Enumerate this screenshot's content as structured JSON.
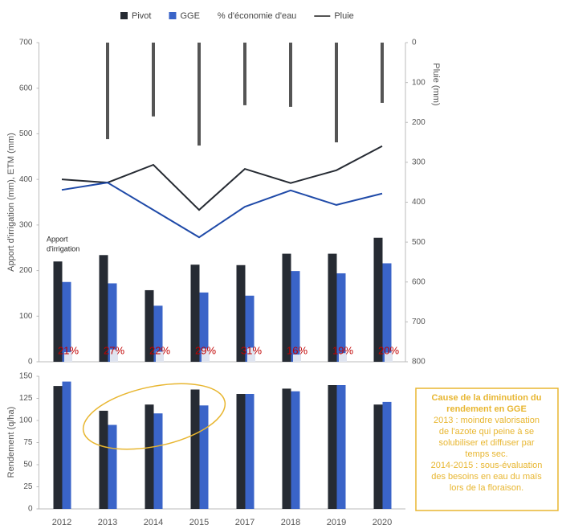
{
  "chart_data": [
    {
      "type": "bar",
      "y_label": "Apport d'irrigation (mm), ETM (mm)",
      "y2_label": "Pluie (mm)",
      "annotation": [
        "Apport",
        "d'irrigation"
      ],
      "ylim": [
        0,
        700
      ],
      "yticks": [
        0,
        100,
        200,
        300,
        400,
        500,
        600,
        700
      ],
      "y2lim": [
        0,
        800
      ],
      "y2ticks": [
        0,
        100,
        200,
        300,
        400,
        500,
        600,
        700,
        800
      ],
      "y2_inverted": true,
      "series": [
        {
          "name": "Pivot",
          "color": "#262b33",
          "values": [
            220,
            234,
            157,
            213,
            212,
            237,
            237,
            272
          ]
        },
        {
          "name": "GGE",
          "color": "#3a64c8",
          "values": [
            175,
            172,
            123,
            152,
            145,
            199,
            194,
            216
          ]
        },
        {
          "name": "% d'économie d'eau",
          "color": "#dfe4f0",
          "values": [
            21,
            27,
            22,
            29,
            31,
            16,
            19,
            20
          ],
          "value_labels": [
            "21%",
            "27%",
            "22%",
            "29%",
            "31%",
            "16%",
            "19%",
            "20%"
          ],
          "label_color": "#c00000"
        },
        {
          "name": "Pluie",
          "color": "#555555",
          "axis": "y2",
          "values": [
            null,
            242,
            185,
            258,
            157,
            161,
            250,
            151
          ]
        }
      ],
      "lines": [
        {
          "color": "#262b33",
          "values": [
            400,
            393,
            432,
            333,
            423,
            392,
            420,
            473
          ]
        },
        {
          "color": "#1f4aa8",
          "values": [
            377,
            393,
            333,
            273,
            340,
            376,
            344,
            369
          ]
        }
      ]
    },
    {
      "type": "bar",
      "y_label": "Rendement (q/ha)",
      "categories": [
        "2012",
        "2013",
        "2014",
        "2015",
        "2017",
        "2018",
        "2019",
        "2020"
      ],
      "ylim": [
        0,
        150
      ],
      "yticks": [
        0,
        25,
        50,
        75,
        100,
        125,
        150
      ],
      "series": [
        {
          "name": "Pivot",
          "color": "#262b33",
          "values": [
            139,
            111,
            118,
            135,
            130,
            136,
            140,
            118
          ]
        },
        {
          "name": "GGE",
          "color": "#3a64c8",
          "values": [
            144,
            95,
            108,
            117,
            130,
            133,
            140,
            121
          ]
        }
      ],
      "note": {
        "title": [
          "Cause de la diminution du",
          "rendement en GGE"
        ],
        "lines": [
          "2013 : moindre valorisation",
          "de l'azote qui peine à se",
          "solubiliser et diffuser par",
          "temps sec.",
          "2014-2015 : sous-évaluation",
          "des besoins en eau du maïs",
          "lors de la floraison."
        ],
        "color": "#e8b630"
      }
    }
  ]
}
